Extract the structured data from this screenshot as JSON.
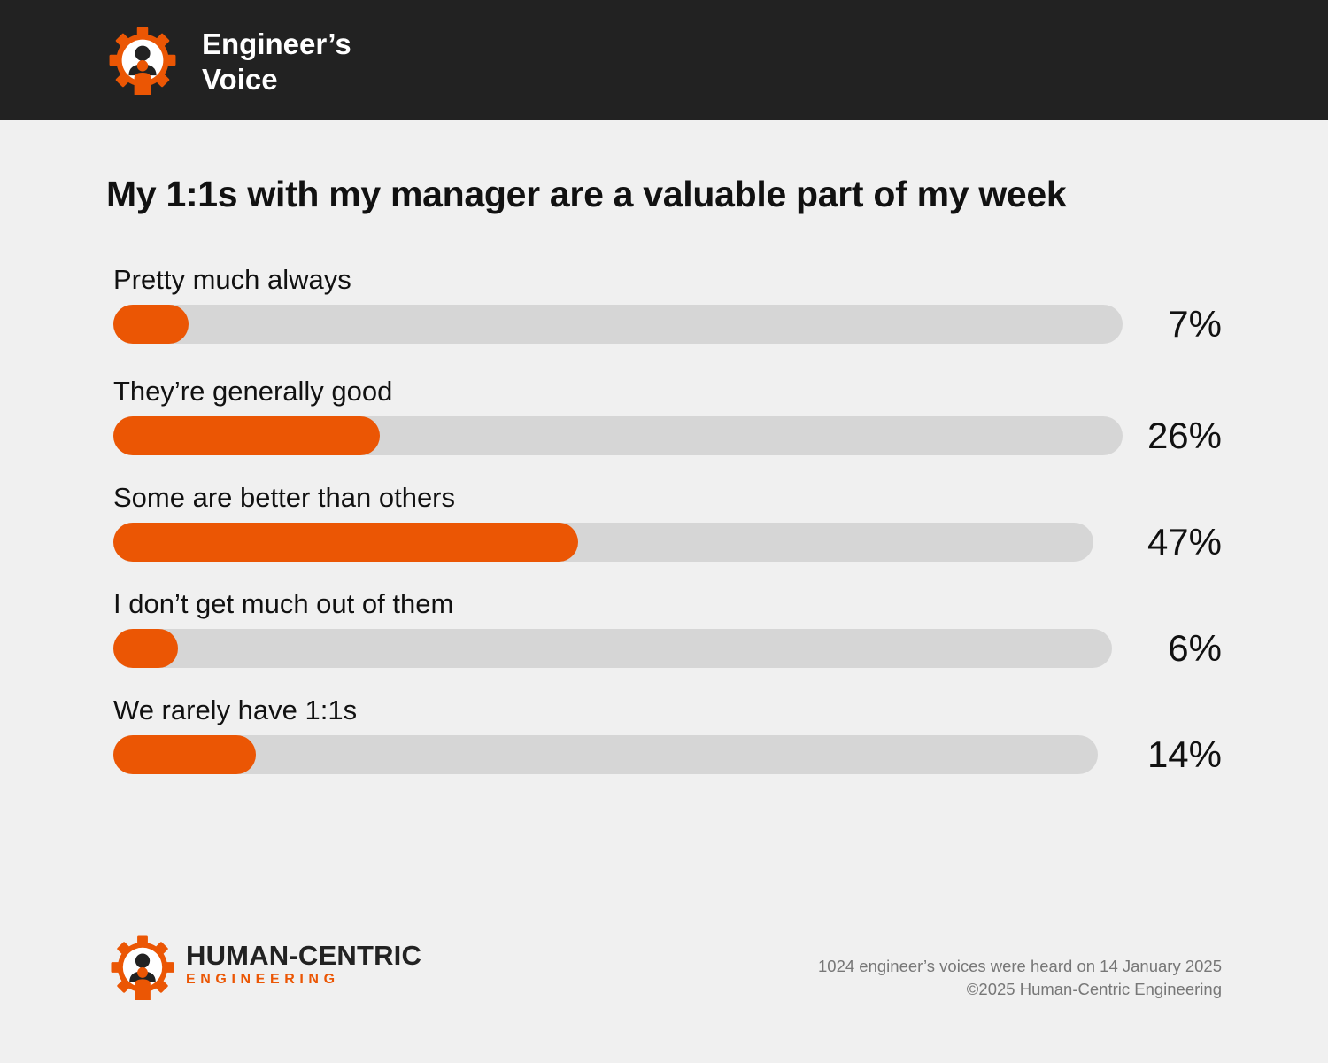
{
  "header": {
    "title_line1": "Engineer’s",
    "title_line2": "Voice",
    "logo_icon": "gear-person-icon"
  },
  "colors": {
    "accent": "#eb5604",
    "track": "#d6d6d6",
    "header_bg": "#222222",
    "page_bg": "#f0f0f0"
  },
  "chart_data": {
    "type": "bar",
    "orientation": "horizontal",
    "title": "My 1:1s with my manager are a valuable part of my week",
    "categories": [
      "Pretty much always",
      "They’re generally good",
      "Some are better than others",
      "I don’t get much out of them",
      "We rarely have 1:1s"
    ],
    "values": [
      7,
      26,
      47,
      6,
      14
    ],
    "value_labels": [
      "7%",
      "26%",
      "47%",
      "6%",
      "14%"
    ],
    "xlim": [
      0,
      100
    ],
    "unit": "%",
    "xlabel": "",
    "ylabel": ""
  },
  "footer": {
    "brand_main": "HUMAN-CENTRIC",
    "brand_sub": "ENGINEERING",
    "logo_icon": "gear-person-icon",
    "note": "1024 engineer’s voices were heard on 14 January 2025",
    "copyright": "©2025 Human-Centric Engineering"
  }
}
